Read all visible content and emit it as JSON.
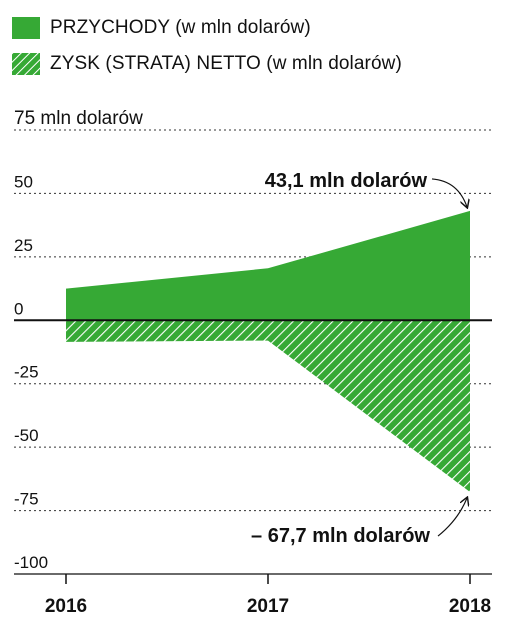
{
  "colors": {
    "accent": "#36a935",
    "text": "#111111",
    "grid": "#333333"
  },
  "legend": {
    "revenue_label": "PRZYCHODY (w mln dolarów)",
    "profit_label": "ZYSK (STRATA) NETTO (w mln dolarów)"
  },
  "chart_data": {
    "type": "area",
    "title": "",
    "ylabel": "75 mln dolarów",
    "ylim": [
      -100,
      75
    ],
    "y_ticks": [
      75,
      50,
      25,
      0,
      -25,
      -50,
      -75,
      -100
    ],
    "y_tick_labels": [
      "75 mln dolarów",
      "50",
      "25",
      "0",
      "-25",
      "-50",
      "-75",
      "-100"
    ],
    "x": [
      "2016",
      "2017",
      "2018"
    ],
    "series": [
      {
        "name": "PRZYCHODY (w mln dolarów)",
        "style": "solid",
        "values": [
          12.5,
          20.5,
          43.1
        ]
      },
      {
        "name": "ZYSK (STRATA) NETTO (w mln dolarów)",
        "style": "hatched",
        "values": [
          -8.5,
          -8,
          -67.7
        ]
      }
    ],
    "annotations": [
      {
        "text": "43,1 mln dolarów",
        "x": "2018",
        "y": 43.1
      },
      {
        "text": "– 67,7 mln dolarów",
        "x": "2018",
        "y": -67.7
      }
    ],
    "grid": true,
    "legend_position": "top-left"
  }
}
